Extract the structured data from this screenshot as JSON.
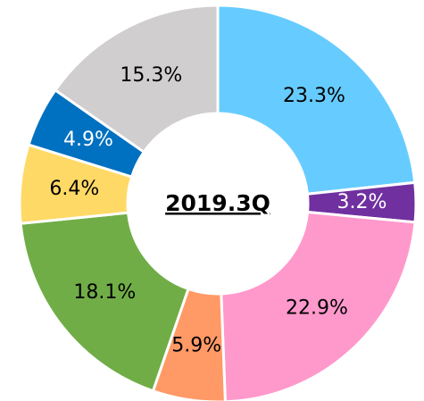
{
  "chart_data": {
    "type": "donut",
    "title": "2019.3Q",
    "values": [
      23.3,
      3.2,
      22.9,
      5.9,
      18.1,
      6.4,
      4.9,
      15.3
    ],
    "value_labels": [
      "23.3%",
      "3.2%",
      "22.9%",
      "5.9%",
      "18.1%",
      "6.4%",
      "4.9%",
      "15.3%"
    ],
    "colors": [
      "#66ccff",
      "#7030a0",
      "#ff99cc",
      "#ff9966",
      "#70ad47",
      "#ffd966",
      "#0070c0",
      "#d0cece"
    ],
    "label_colors": [
      "#000000",
      "#ffffff",
      "#000000",
      "#000000",
      "#000000",
      "#000000",
      "#ffffff",
      "#000000"
    ]
  }
}
